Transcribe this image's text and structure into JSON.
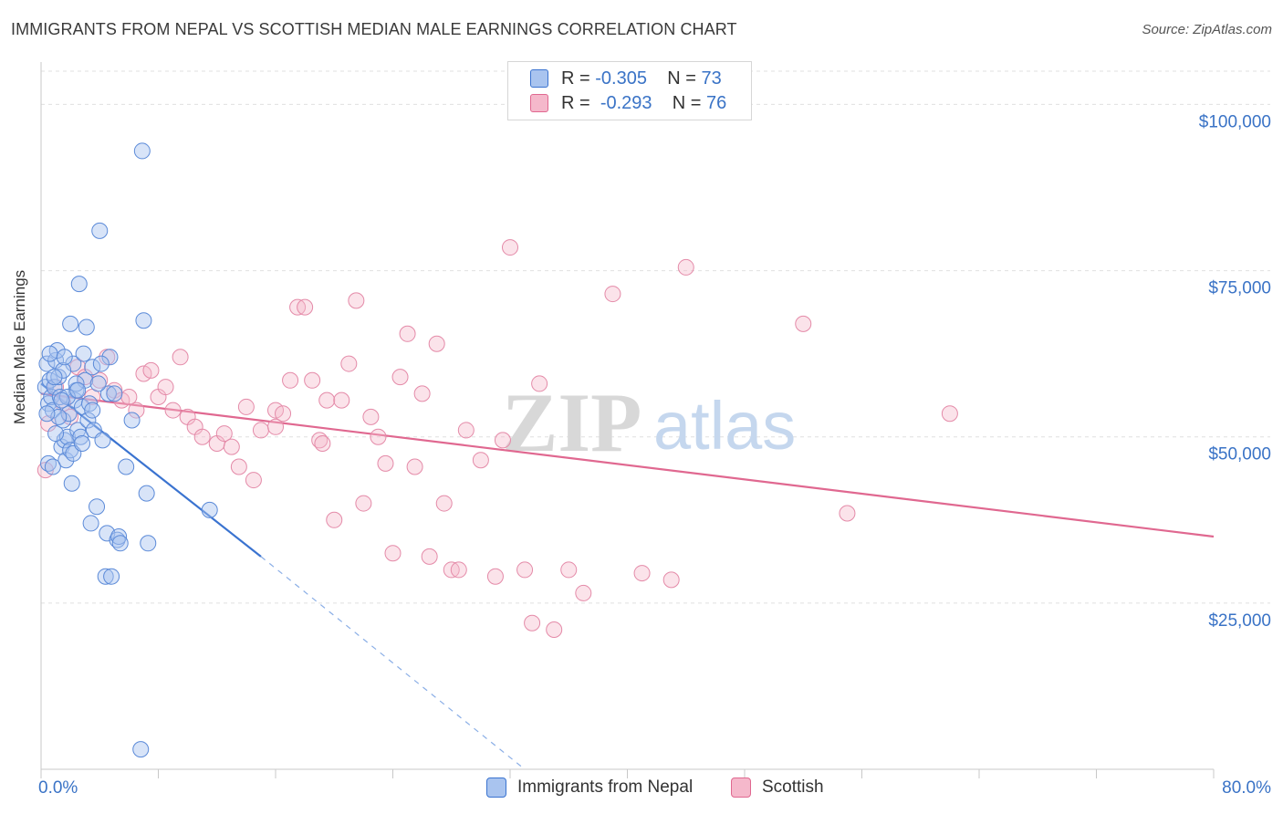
{
  "title": "IMMIGRANTS FROM NEPAL VS SCOTTISH MEDIAN MALE EARNINGS CORRELATION CHART",
  "source": "Source: ZipAtlas.com",
  "watermark": {
    "zip": "ZIP",
    "atlas": "atlas"
  },
  "legend": {
    "rows": [
      {
        "r_label": "R =",
        "r_value": "-0.305",
        "n_label": "N =",
        "n_value": "73"
      },
      {
        "r_label": "R =",
        "r_value": "-0.293",
        "n_label": "N =",
        "n_value": "76"
      }
    ]
  },
  "colors": {
    "nepal": "#3a73d0",
    "nepal_fill": "#a9c4ef",
    "scottish": "#e06890",
    "scottish_fill": "#f5b8cb",
    "tick_label": "#3a73c6",
    "grid": "#e0e0e0"
  },
  "chart_data": {
    "type": "scatter",
    "title": "IMMIGRANTS FROM NEPAL VS SCOTTISH MEDIAN MALE EARNINGS CORRELATION CHART",
    "xlabel": "",
    "ylabel": "Median Male Earnings",
    "xlim": [
      0,
      80
    ],
    "ylim": [
      0,
      105000
    ],
    "x_tick_labels": [
      "0.0%",
      "80.0%"
    ],
    "y_ticks": [
      25000,
      50000,
      75000,
      100000
    ],
    "y_tick_labels": [
      "$25,000",
      "$50,000",
      "$75,000",
      "$100,000"
    ],
    "grid": true,
    "legend_position": "bottom",
    "series": [
      {
        "name": "Immigrants from Nepal",
        "color": "#3a73d0",
        "trend": {
          "x0": 0,
          "y0": 58000,
          "x1": 15,
          "y1": 32000,
          "x_dashed_end": 33,
          "y_dashed_end": 0
        },
        "points": [
          [
            0.3,
            57500
          ],
          [
            0.4,
            61000
          ],
          [
            0.5,
            55000
          ],
          [
            0.6,
            58500
          ],
          [
            0.7,
            56000
          ],
          [
            0.8,
            54000
          ],
          [
            0.9,
            57500
          ],
          [
            1.0,
            61500
          ],
          [
            1.1,
            63000
          ],
          [
            1.2,
            59000
          ],
          [
            1.3,
            56000
          ],
          [
            1.4,
            48500
          ],
          [
            1.5,
            52500
          ],
          [
            1.6,
            49500
          ],
          [
            1.7,
            46500
          ],
          [
            1.8,
            50000
          ],
          [
            1.9,
            53500
          ],
          [
            2.0,
            67000
          ],
          [
            2.1,
            43000
          ],
          [
            2.2,
            61000
          ],
          [
            2.3,
            55500
          ],
          [
            2.4,
            57000
          ],
          [
            2.5,
            51000
          ],
          [
            2.6,
            73000
          ],
          [
            2.7,
            50000
          ],
          [
            2.8,
            54500
          ],
          [
            2.9,
            62500
          ],
          [
            3.0,
            58500
          ],
          [
            3.1,
            66500
          ],
          [
            3.2,
            52500
          ],
          [
            3.3,
            55000
          ],
          [
            3.4,
            37000
          ],
          [
            3.5,
            60500
          ],
          [
            3.6,
            51000
          ],
          [
            3.8,
            39500
          ],
          [
            4.0,
            81000
          ],
          [
            4.2,
            49500
          ],
          [
            4.4,
            29000
          ],
          [
            4.5,
            35500
          ],
          [
            4.6,
            56500
          ],
          [
            4.7,
            62000
          ],
          [
            4.8,
            29000
          ],
          [
            5.0,
            56500
          ],
          [
            5.2,
            34500
          ],
          [
            5.3,
            35000
          ],
          [
            5.4,
            34000
          ],
          [
            5.8,
            45500
          ],
          [
            6.2,
            52500
          ],
          [
            6.9,
            93000
          ],
          [
            7.0,
            67500
          ],
          [
            7.2,
            41500
          ],
          [
            7.3,
            34000
          ],
          [
            0.5,
            46000
          ],
          [
            1.0,
            50500
          ],
          [
            1.5,
            60000
          ],
          [
            2.0,
            48000
          ],
          [
            1.2,
            53000
          ],
          [
            0.8,
            45500
          ],
          [
            2.4,
            58000
          ],
          [
            1.8,
            56000
          ],
          [
            6.8,
            3000
          ],
          [
            11.5,
            39000
          ],
          [
            0.6,
            62500
          ],
          [
            3.9,
            58000
          ],
          [
            2.2,
            47500
          ],
          [
            1.4,
            55500
          ],
          [
            0.9,
            59000
          ],
          [
            3.5,
            54000
          ],
          [
            2.8,
            49000
          ],
          [
            1.6,
            62000
          ],
          [
            4.1,
            61000
          ],
          [
            2.5,
            57000
          ],
          [
            0.4,
            53500
          ]
        ]
      },
      {
        "name": "Scottish",
        "color": "#e06890",
        "trend": {
          "x0": 0,
          "y0": 56500,
          "x1": 80,
          "y1": 35000
        },
        "points": [
          [
            0.3,
            45000
          ],
          [
            0.5,
            52000
          ],
          [
            1.0,
            57500
          ],
          [
            1.5,
            55000
          ],
          [
            2.0,
            53000
          ],
          [
            2.5,
            60500
          ],
          [
            3.0,
            59000
          ],
          [
            3.5,
            56000
          ],
          [
            4.0,
            58500
          ],
          [
            4.5,
            62000
          ],
          [
            5.0,
            57000
          ],
          [
            5.5,
            55500
          ],
          [
            6.0,
            56000
          ],
          [
            6.5,
            54000
          ],
          [
            7.0,
            59500
          ],
          [
            7.5,
            60000
          ],
          [
            8.0,
            56000
          ],
          [
            8.5,
            57500
          ],
          [
            9.0,
            54000
          ],
          [
            9.5,
            62000
          ],
          [
            10.0,
            53000
          ],
          [
            10.5,
            51500
          ],
          [
            11.0,
            50000
          ],
          [
            12.0,
            49000
          ],
          [
            12.5,
            50500
          ],
          [
            13.0,
            48500
          ],
          [
            14.0,
            54500
          ],
          [
            14.5,
            43500
          ],
          [
            15.0,
            51000
          ],
          [
            16.0,
            54000
          ],
          [
            16.5,
            53500
          ],
          [
            17.0,
            58500
          ],
          [
            17.5,
            69500
          ],
          [
            18.0,
            69500
          ],
          [
            18.5,
            58500
          ],
          [
            19.0,
            49500
          ],
          [
            19.5,
            55500
          ],
          [
            20.0,
            37500
          ],
          [
            20.5,
            55500
          ],
          [
            21.0,
            61000
          ],
          [
            22.0,
            40000
          ],
          [
            22.5,
            53000
          ],
          [
            23.0,
            50000
          ],
          [
            23.5,
            46000
          ],
          [
            24.0,
            32500
          ],
          [
            24.5,
            59000
          ],
          [
            25.0,
            65500
          ],
          [
            25.5,
            45500
          ],
          [
            26.0,
            56500
          ],
          [
            26.5,
            32000
          ],
          [
            27.0,
            64000
          ],
          [
            27.5,
            40000
          ],
          [
            28.0,
            30000
          ],
          [
            28.5,
            30000
          ],
          [
            29.0,
            51000
          ],
          [
            30.0,
            46500
          ],
          [
            31.0,
            29000
          ],
          [
            31.5,
            49500
          ],
          [
            32.0,
            78500
          ],
          [
            33.0,
            30000
          ],
          [
            33.5,
            22000
          ],
          [
            34.0,
            58000
          ],
          [
            35.0,
            21000
          ],
          [
            36.0,
            30000
          ],
          [
            37.0,
            26500
          ],
          [
            39.0,
            71500
          ],
          [
            41.0,
            29500
          ],
          [
            43.0,
            28500
          ],
          [
            44.0,
            75500
          ],
          [
            52.0,
            67000
          ],
          [
            55.0,
            38500
          ],
          [
            62.0,
            53500
          ],
          [
            21.5,
            70500
          ],
          [
            19.2,
            49000
          ],
          [
            13.5,
            45500
          ],
          [
            16.0,
            51500
          ]
        ]
      }
    ]
  },
  "bottom_legend": [
    "Immigrants from Nepal",
    "Scottish"
  ]
}
